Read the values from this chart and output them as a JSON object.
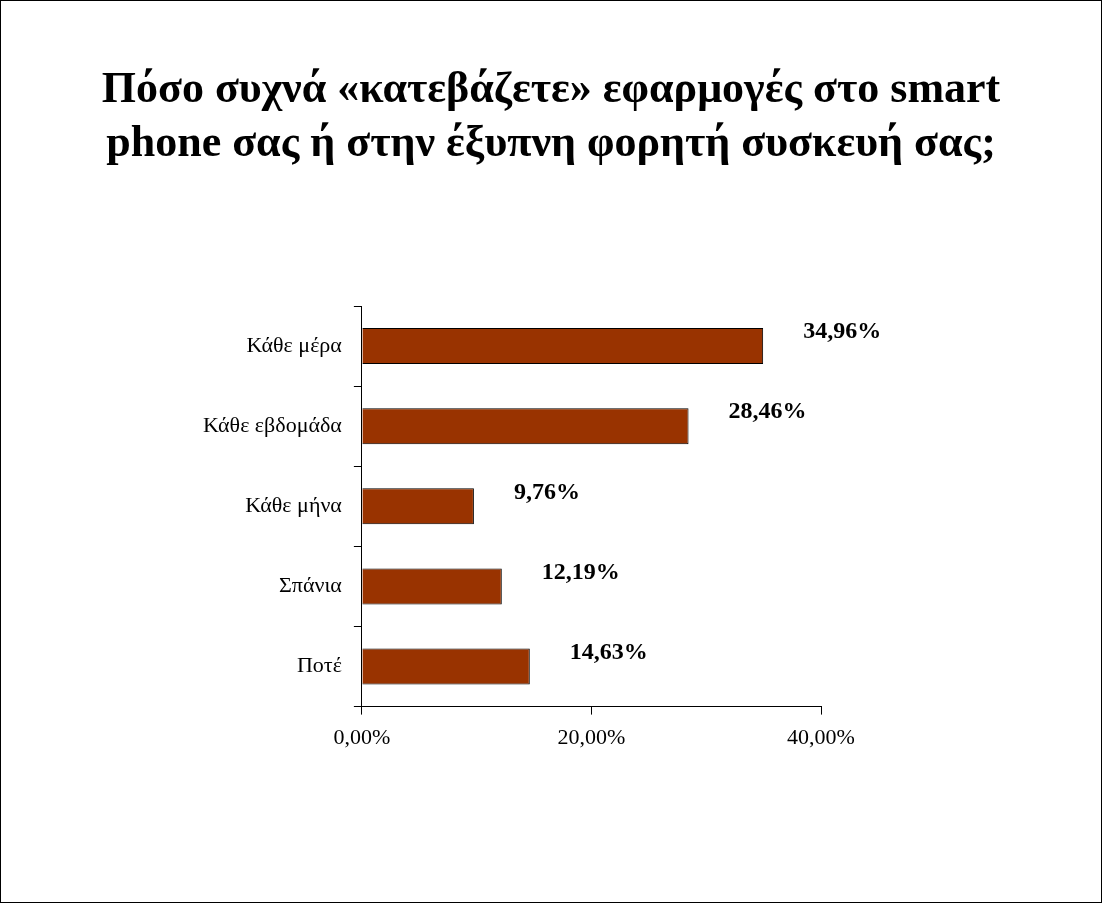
{
  "chart_data": {
    "type": "bar",
    "orientation": "horizontal",
    "title": "Πόσο συχνά «κατεβάζετε» εφαρμογές στο smart phone σας ή στην έξυπνη φορητή συσκευή σας;",
    "categories": [
      "Κάθε μέρα",
      "Κάθε εβδομάδα",
      "Κάθε μήνα",
      "Σπάνια",
      "Ποτέ"
    ],
    "values": [
      34.96,
      28.46,
      9.76,
      12.19,
      14.63
    ],
    "value_labels": [
      "34,96%",
      "28,46%",
      "9,76%",
      "12,19%",
      "14,63%"
    ],
    "color": "#993300",
    "xlim": [
      0,
      40
    ],
    "xticks": [
      {
        "value": 0,
        "label": "0,00%"
      },
      {
        "value": 20,
        "label": "20,00%"
      },
      {
        "value": 40,
        "label": "40,00%"
      }
    ],
    "grid": false,
    "legend": false
  }
}
